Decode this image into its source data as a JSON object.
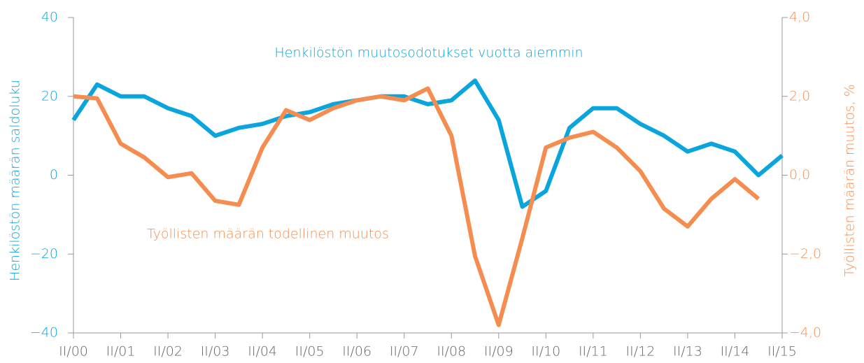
{
  "chart_data": {
    "type": "line",
    "categories": [
      "II/00",
      null,
      "II/01",
      null,
      "II/02",
      null,
      "II/03",
      null,
      "II/04",
      null,
      "II/05",
      null,
      "II/06",
      null,
      "II/07",
      null,
      "II/08",
      null,
      "II/09",
      null,
      "II/10",
      null,
      "II/11",
      null,
      "II/12",
      null,
      "II/13",
      null,
      "II/14",
      null,
      "II/15"
    ],
    "series": [
      {
        "name": "Henkilöstön muutosodotukset vuotta aiemmin",
        "color": "#0aa5dd",
        "axis": "y",
        "values": [
          14,
          23,
          20,
          20,
          17,
          15,
          10,
          12,
          13,
          15,
          16,
          18,
          19,
          20,
          20,
          18,
          19,
          24,
          14,
          -8,
          -4,
          12,
          17,
          17,
          13,
          10,
          6,
          8,
          6,
          0,
          5
        ]
      },
      {
        "name": "Työllisten määrän todellinen muutos",
        "color": "#f48d4f",
        "axis": "y2",
        "values": [
          2.0,
          1.95,
          0.8,
          0.45,
          -0.05,
          0.05,
          -0.65,
          -0.75,
          0.7,
          1.65,
          1.4,
          1.7,
          1.9,
          2.0,
          1.9,
          2.2,
          1.0,
          -2.05,
          -3.8,
          -1.6,
          0.7,
          0.95,
          1.1,
          0.7,
          0.1,
          -0.85,
          -1.3,
          -0.6,
          -0.1,
          -0.6,
          null
        ]
      }
    ],
    "ylabel": "Henkilöstön määrän saldoluku",
    "y2label": "Työllisten määrän muutos, %",
    "ylim": [
      -40,
      40
    ],
    "yticks": [
      {
        "value": -40,
        "label": "−40"
      },
      {
        "value": -20,
        "label": "−20"
      },
      0,
      20,
      40
    ],
    "y2lim": [
      -4,
      4
    ],
    "y2ticks": [
      {
        "value": -4,
        "label": "−4,0"
      },
      {
        "value": -2,
        "label": "−2,0"
      },
      {
        "value": 0,
        "label": "0,0"
      },
      {
        "value": 2,
        "label": "2,0"
      },
      {
        "value": 4,
        "label": "4,0"
      }
    ],
    "grid": false
  }
}
